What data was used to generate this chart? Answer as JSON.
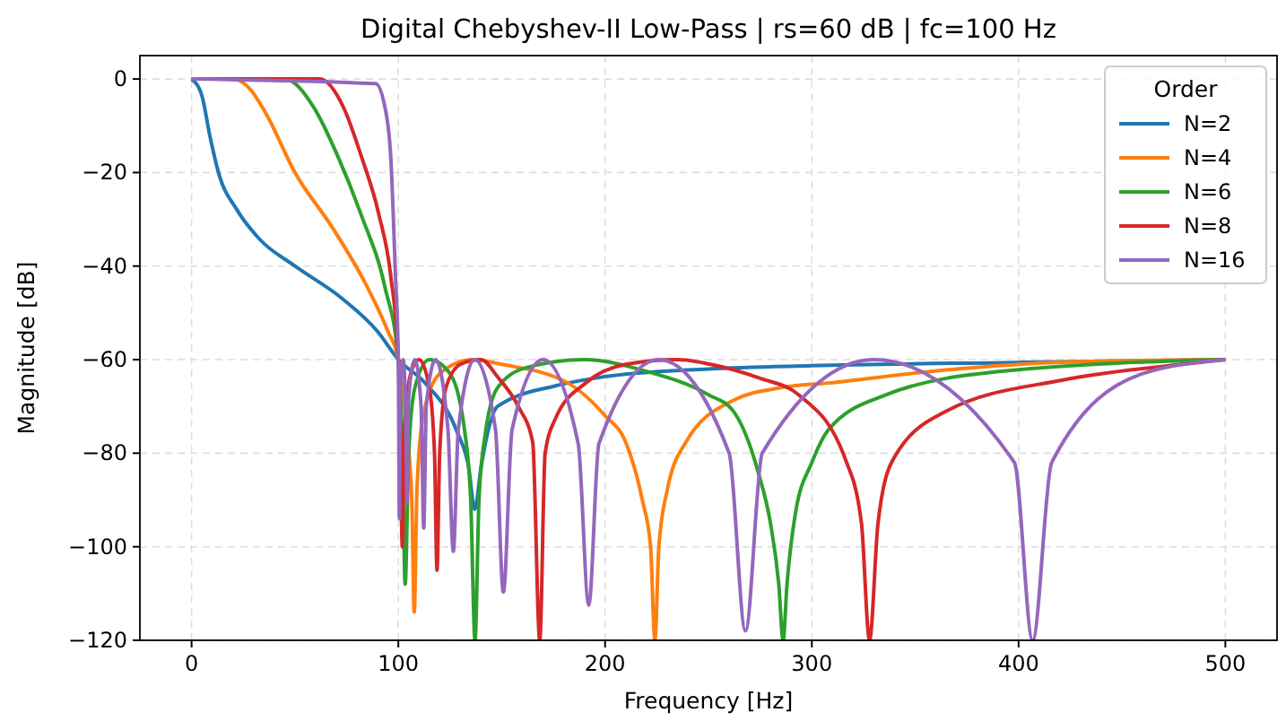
{
  "chart_data": {
    "type": "line",
    "title": "Digital Chebyshev-II Low-Pass | rs=60 dB | fc=100 Hz",
    "xlabel": "Frequency [Hz]",
    "ylabel": "Magnitude [dB]",
    "legend_title": "Order",
    "xlim": [
      -25,
      525
    ],
    "xticks": [
      0,
      100,
      200,
      300,
      400,
      500
    ],
    "ylim": [
      -120,
      5
    ],
    "yticks": [
      -120,
      -100,
      -80,
      -60,
      -40,
      -20,
      0
    ],
    "grid": true,
    "legend": "top right",
    "marker": "none",
    "line_style": "solid",
    "series": [
      {
        "name": "N=2",
        "color": "#1f77b4",
        "x": [
          0,
          5,
          9,
          13,
          22,
          33,
          50,
          73,
          90,
          100,
          113,
          128,
          134,
          137,
          140,
          148,
          176,
          199,
          250,
          300,
          400,
          500
        ],
        "values": [
          0,
          -3.6,
          -12.5,
          -20,
          -28,
          -34.3,
          -40,
          -47,
          -54,
          -60,
          -65,
          -75,
          -83,
          -92,
          -83,
          -70,
          -65.6,
          -63.7,
          -62,
          -61.3,
          -60.6,
          -60
        ]
      },
      {
        "name": "N=4",
        "color": "#ff7f0e",
        "x": [
          0,
          20,
          28,
          36,
          50,
          68,
          85,
          95,
          100,
          104,
          106.5,
          107.7,
          109,
          112,
          120,
          136,
          150,
          182,
          200,
          210,
          218,
          222,
          224.1,
          226,
          230,
          239,
          262,
          285,
          308,
          365,
          422,
          500
        ],
        "values": [
          0,
          0,
          -2,
          -7.4,
          -20,
          -31.7,
          -44.5,
          -54,
          -60,
          -75,
          -90,
          -114,
          -88,
          -72,
          -63,
          -60,
          -61,
          -65,
          -72,
          -77.7,
          -90,
          -100,
          -120,
          -100,
          -88,
          -77.7,
          -68.7,
          -66,
          -65,
          -62.2,
          -60.5,
          -60
        ]
      },
      {
        "name": "N=6",
        "color": "#2ca02c",
        "x": [
          0,
          45,
          59,
          70.6,
          82,
          93.5,
          100,
          102,
          103.3,
          105,
          108,
          115,
          125,
          132,
          135,
          137.1,
          139,
          142,
          148,
          162,
          190,
          220,
          250,
          262,
          274,
          280,
          284,
          286.1,
          288,
          292,
          300,
          308,
          336,
          394,
          500
        ],
        "values": [
          0,
          0,
          -6,
          -16.4,
          -29,
          -44.5,
          -60,
          -80,
          -108,
          -80,
          -66,
          -60,
          -63,
          -75,
          -90,
          -120,
          -90,
          -76,
          -66,
          -61.7,
          -60,
          -62.5,
          -67.5,
          -71,
          -84,
          -95,
          -108,
          -120,
          -108,
          -93,
          -82,
          -75,
          -67.5,
          -62.4,
          -60
        ]
      },
      {
        "name": "N=8",
        "color": "#d62728",
        "x": [
          0,
          62,
          73.4,
          82,
          90.6,
          96.3,
          100,
          101,
          101.9,
          103,
          106,
          110,
          115,
          117.5,
          118.7,
          120,
          123,
          130,
          140,
          148,
          158,
          165,
          168.4,
          171,
          176,
          190.6,
          210,
          235,
          251,
          275,
          293.6,
          316.5,
          324,
          327.9,
          332,
          339,
          365,
          422,
          479,
          500
        ],
        "values": [
          0,
          0,
          -6,
          -16.4,
          -29,
          -42,
          -60,
          -75,
          -100,
          -75,
          -63,
          -60,
          -66,
          -80,
          -105,
          -80,
          -66,
          -61,
          -60,
          -63.7,
          -70,
          -77.7,
          -120,
          -80,
          -72.6,
          -65,
          -61,
          -60,
          -61,
          -64,
          -67.5,
          -81.6,
          -95,
          -120,
          -95,
          -81.6,
          -71,
          -64.3,
          -61,
          -60
        ]
      },
      {
        "name": "N=16",
        "color": "#9467bd",
        "x": [
          0,
          89,
          93.5,
          96.3,
          98.6,
          100,
          100.5,
          101,
          102.3,
          103.5,
          104.2,
          105,
          108,
          111,
          112.3,
          113.5,
          118,
          124,
          126.6,
          129,
          137,
          147,
          150.8,
          155,
          170,
          187,
          192.1,
          197,
          226,
          260,
          267.9,
          276,
          330,
          398,
          406.8,
          416,
          460,
          500
        ],
        "values": [
          0,
          -1,
          -6,
          -16.4,
          -42,
          -60,
          -94,
          -66,
          -60,
          -70,
          -90.5,
          -68,
          -60,
          -70,
          -96,
          -70,
          -60,
          -75,
          -101,
          -75,
          -60,
          -75,
          -109.7,
          -75,
          -60,
          -78,
          -112.5,
          -78,
          -60,
          -80,
          -118,
          -80,
          -60,
          -82,
          -120,
          -82,
          -63,
          -60
        ]
      }
    ]
  }
}
